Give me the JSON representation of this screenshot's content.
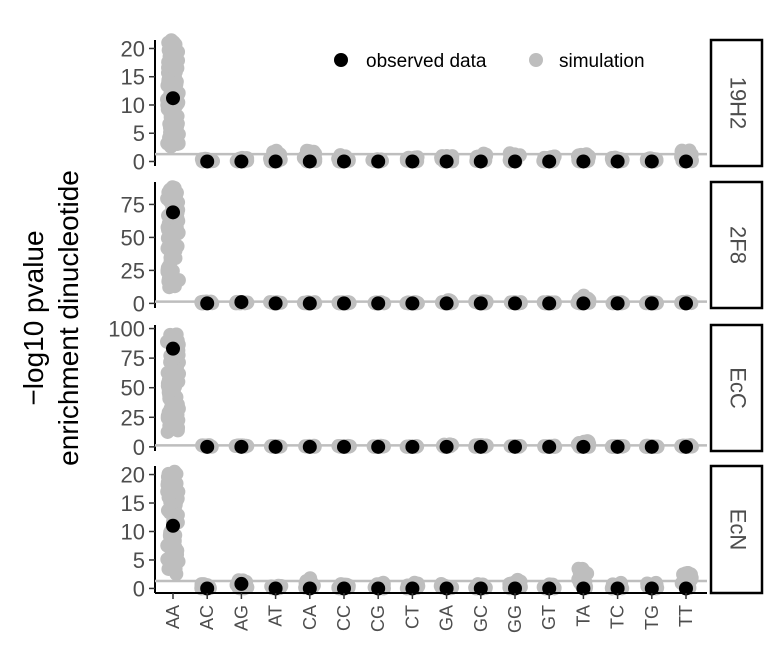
{
  "chart_data": {
    "type": "scatter",
    "ylabel_lines": [
      "−log10 pvalue",
      "enrichment dinucleotide"
    ],
    "categories": [
      "AA",
      "AC",
      "AG",
      "AT",
      "CA",
      "CC",
      "CG",
      "CT",
      "GA",
      "GC",
      "GG",
      "GT",
      "TA",
      "TC",
      "TG",
      "TT"
    ],
    "legend": {
      "position": "top-right",
      "entries": [
        {
          "label": "observed data",
          "color": "#000000"
        },
        {
          "label": "simulation",
          "color": "#bebebe"
        }
      ]
    },
    "colors": {
      "observed": "#000000",
      "simulation": "#bebebe",
      "threshold_line": "#bebebe"
    },
    "threshold": 1.3,
    "panels": [
      {
        "strip": "19H2",
        "ylim": [
          -0.8,
          21.5
        ],
        "yticks": [
          0,
          5,
          10,
          15,
          20
        ],
        "observed": [
          11.2,
          0,
          0,
          0,
          0,
          0,
          0,
          0,
          0,
          0,
          0,
          0,
          0,
          0,
          0,
          0
        ],
        "sim_max": [
          21.5,
          0.5,
          0.8,
          2.2,
          2.0,
          1.2,
          0.4,
          0.8,
          1.0,
          1.4,
          1.6,
          1.0,
          2.0,
          0.7,
          0.7,
          2.0
        ]
      },
      {
        "strip": "2F8",
        "ylim": [
          -3.5,
          92
        ],
        "yticks": [
          0,
          25,
          50,
          75
        ],
        "observed": [
          69,
          0,
          1,
          0,
          0,
          0,
          0,
          0,
          0,
          0,
          0,
          0,
          0,
          0,
          0,
          0
        ],
        "sim_max": [
          88,
          1.5,
          1.5,
          1,
          1,
          1,
          1,
          1,
          2.5,
          1.5,
          1,
          1,
          6,
          1,
          1,
          1.5
        ]
      },
      {
        "strip": "EcC",
        "ylim": [
          -3.5,
          103
        ],
        "yticks": [
          0,
          25,
          50,
          75,
          100
        ],
        "observed": [
          83,
          0,
          0,
          0,
          0,
          0,
          0,
          0,
          0,
          0,
          0,
          0,
          0,
          0,
          0,
          0
        ],
        "sim_max": [
          100,
          1.5,
          1.5,
          1,
          1,
          1,
          1,
          1,
          2.5,
          1.5,
          1,
          1,
          5,
          1,
          1,
          1.5
        ]
      },
      {
        "strip": "EcN",
        "ylim": [
          -0.8,
          21.5
        ],
        "yticks": [
          0,
          5,
          10,
          15,
          20
        ],
        "observed": [
          11,
          0,
          0.8,
          0,
          0,
          0,
          0,
          0,
          0,
          0,
          0,
          0,
          0,
          0,
          0,
          0
        ],
        "sim_max": [
          20.5,
          0.8,
          1.5,
          0.5,
          1.8,
          0.8,
          1.0,
          1.3,
          0.8,
          0.8,
          1.6,
          1.0,
          4.0,
          1.0,
          1.0,
          2.8
        ]
      }
    ]
  }
}
